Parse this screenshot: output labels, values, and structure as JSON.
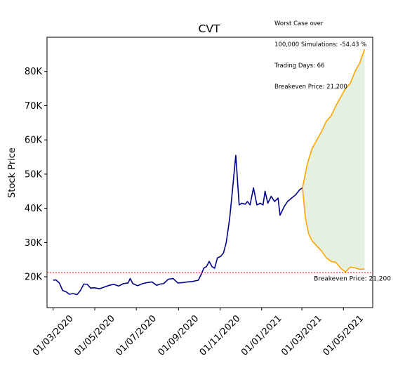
{
  "chart_data": {
    "type": "line",
    "title": "CVT",
    "xlabel": "",
    "ylabel": "Stock Price",
    "ylim": [
      11000,
      90000
    ],
    "xlim": [
      "2020-02-21",
      "2021-06-13"
    ],
    "grid": false,
    "y_ticks": [
      20000,
      30000,
      40000,
      50000,
      60000,
      70000,
      80000
    ],
    "y_tick_labels": [
      "20K",
      "30K",
      "40K",
      "50K",
      "60K",
      "70K",
      "80K"
    ],
    "x_ticks": [
      "2020-03-01",
      "2020-05-01",
      "2020-07-01",
      "2020-09-01",
      "2020-11-01",
      "2021-01-01",
      "2021-03-01",
      "2021-05-01"
    ],
    "x_tick_labels": [
      "01/03/2020",
      "01/05/2020",
      "01/07/2020",
      "01/09/2020",
      "01/11/2020",
      "01/01/2021",
      "01/03/2021",
      "01/05/2021"
    ],
    "annotation_lines": [
      "Worst Case over",
      "100,000 Simulations: -54.43 %",
      "Trading Days: 66",
      "Breakeven Price: 21,200"
    ],
    "breakeven": {
      "value": 21200,
      "label": "Breakeven Price: 21,200",
      "color": "#ff0000"
    },
    "colors": {
      "history": "#00008b",
      "projection": "#ffa500",
      "band_fill": "#e5f0e0"
    },
    "series": [
      {
        "role": "history",
        "x": [
          "2020-03-01",
          "2020-03-05",
          "2020-03-10",
          "2020-03-15",
          "2020-03-20",
          "2020-03-25",
          "2020-03-30",
          "2020-04-05",
          "2020-04-10",
          "2020-04-15",
          "2020-04-20",
          "2020-04-25",
          "2020-05-01",
          "2020-05-08",
          "2020-05-15",
          "2020-05-22",
          "2020-05-29",
          "2020-06-05",
          "2020-06-12",
          "2020-06-19",
          "2020-06-22",
          "2020-06-26",
          "2020-07-03",
          "2020-07-10",
          "2020-07-17",
          "2020-07-24",
          "2020-07-31",
          "2020-08-05",
          "2020-08-10",
          "2020-08-17",
          "2020-08-24",
          "2020-08-31",
          "2020-09-07",
          "2020-09-14",
          "2020-09-21",
          "2020-09-25",
          "2020-09-30",
          "2020-10-05",
          "2020-10-08",
          "2020-10-12",
          "2020-10-16",
          "2020-10-20",
          "2020-10-24",
          "2020-10-28",
          "2020-11-02",
          "2020-11-06",
          "2020-11-10",
          "2020-11-15",
          "2020-11-19",
          "2020-11-24",
          "2020-11-29",
          "2020-12-03",
          "2020-12-08",
          "2020-12-11",
          "2020-12-15",
          "2020-12-20",
          "2020-12-25",
          "2020-12-30",
          "2021-01-03",
          "2021-01-06",
          "2021-01-10",
          "2021-01-15",
          "2021-01-20",
          "2021-01-25",
          "2021-01-28",
          "2021-02-03",
          "2021-02-08",
          "2021-02-14",
          "2021-02-20",
          "2021-02-26",
          "2021-03-02"
        ],
        "y": [
          19000,
          19100,
          18200,
          16000,
          15600,
          14900,
          15100,
          14800,
          16000,
          17900,
          17800,
          16700,
          16800,
          16500,
          17000,
          17500,
          17800,
          17300,
          18000,
          18200,
          19500,
          18000,
          17400,
          18000,
          18300,
          18500,
          17500,
          17900,
          18000,
          19300,
          19500,
          18200,
          18300,
          18500,
          18600,
          18800,
          19000,
          21000,
          22500,
          23000,
          24500,
          23000,
          22500,
          25500,
          26000,
          27000,
          30000,
          37000,
          45000,
          55500,
          41000,
          41500,
          41200,
          42000,
          41000,
          46000,
          41000,
          41500,
          41000,
          45000,
          41500,
          43500,
          42000,
          43000,
          38000,
          40500,
          42000,
          43000,
          44000,
          45500,
          46000
        ]
      },
      {
        "role": "projection-upper",
        "x": [
          "2021-03-02",
          "2021-03-09",
          "2021-03-16",
          "2021-03-23",
          "2021-03-30",
          "2021-04-06",
          "2021-04-13",
          "2021-04-20",
          "2021-04-27",
          "2021-05-04",
          "2021-05-11",
          "2021-05-18",
          "2021-05-25",
          "2021-06-01"
        ],
        "y": [
          46000,
          53000,
          57500,
          60000,
          62500,
          65500,
          67000,
          70000,
          72500,
          75000,
          76500,
          80000,
          82500,
          86500
        ]
      },
      {
        "role": "projection-lower",
        "x": [
          "2021-03-02",
          "2021-03-06",
          "2021-03-11",
          "2021-03-16",
          "2021-03-23",
          "2021-03-30",
          "2021-04-06",
          "2021-04-13",
          "2021-04-20",
          "2021-04-27",
          "2021-05-04",
          "2021-05-11",
          "2021-05-18",
          "2021-05-25",
          "2021-06-01"
        ],
        "y": [
          46000,
          37500,
          32500,
          30500,
          29000,
          27500,
          25500,
          24500,
          24200,
          22500,
          21400,
          22800,
          22600,
          22200,
          22300
        ]
      }
    ]
  }
}
